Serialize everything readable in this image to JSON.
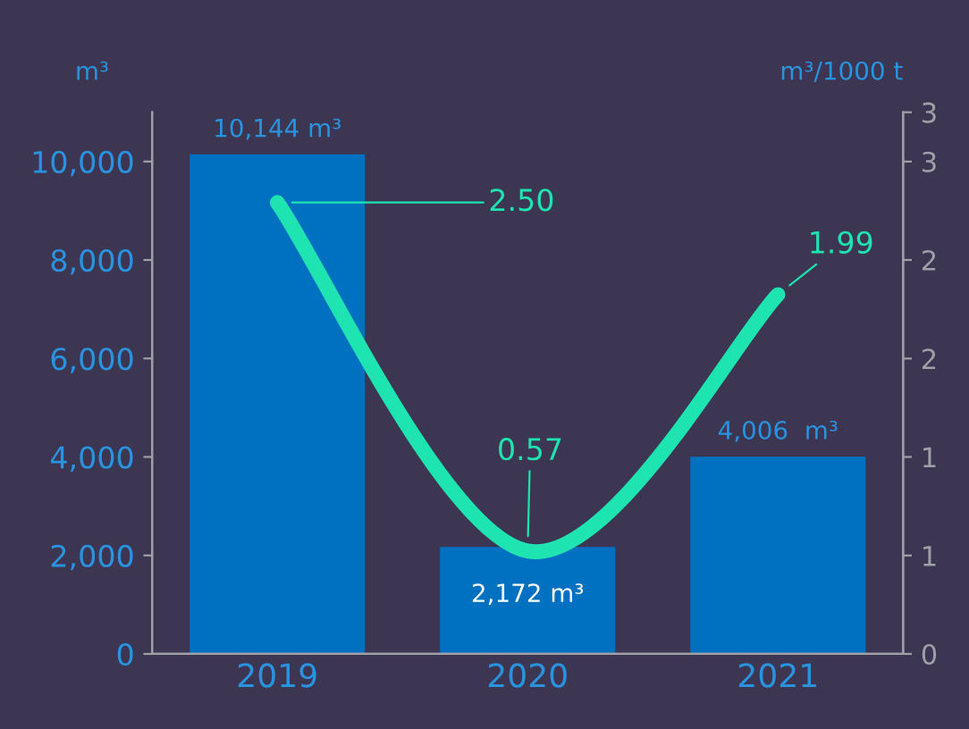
{
  "chart_data": {
    "type": "bar",
    "categories": [
      "2019",
      "2020",
      "2021"
    ],
    "ylabel": "m³",
    "y2label": "m³/1000 t",
    "ylim": [
      0,
      11000
    ],
    "yticks": [
      {
        "value": 0,
        "label": "0"
      },
      {
        "value": 2000,
        "label": "2,000"
      },
      {
        "value": 4000,
        "label": "4,000"
      },
      {
        "value": 6000,
        "label": "6,000"
      },
      {
        "value": 8000,
        "label": "8,000"
      },
      {
        "value": 10000,
        "label": "10,000"
      }
    ],
    "y2lim": [
      0,
      3
    ],
    "y2ticks": [
      0,
      {
        "value": 0.545,
        "label": "1"
      },
      {
        "value": 1.091,
        "label": "1"
      },
      {
        "value": 1.636,
        "label": "2"
      },
      {
        "value": 2.182,
        "label": "2"
      },
      {
        "value": 2.727,
        "label": "3"
      },
      3
    ],
    "grid": false,
    "legend": false,
    "series": [
      {
        "color": "#0070c0",
        "values": [
          10144,
          2172,
          4006
        ],
        "value_labels": [
          "10,144 m³",
          "2,172 m³",
          "4,006  m³"
        ]
      },
      {
        "type": "line",
        "axis": "y2",
        "color": "#1de4b0",
        "values": [
          2.5,
          0.57,
          1.99
        ],
        "value_labels": [
          "2.50",
          "0.57",
          "1.99"
        ],
        "marker": "none",
        "line_style": "solid"
      }
    ]
  }
}
